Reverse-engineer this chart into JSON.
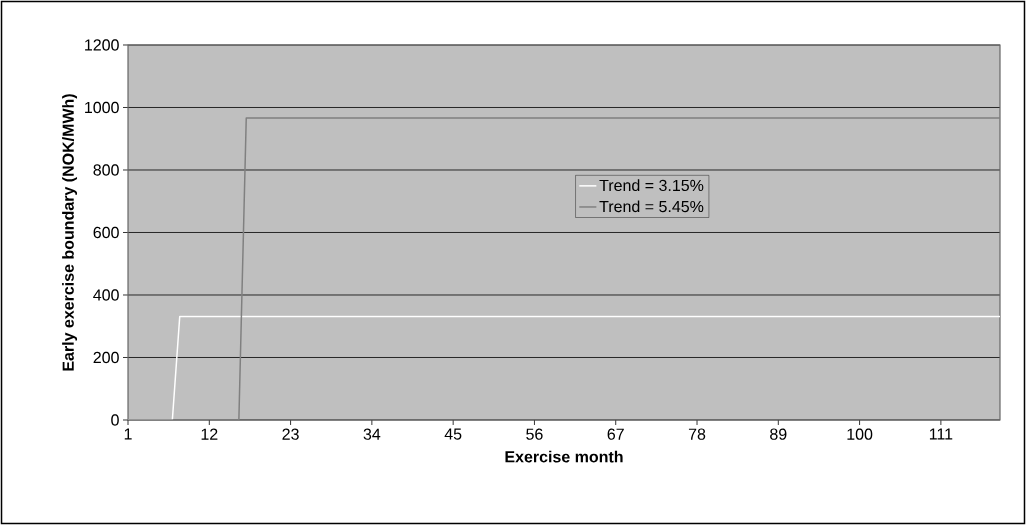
{
  "chart_data": {
    "type": "line",
    "xlabel": "Exercise month",
    "ylabel": "Early exercise boundary (NOK/MWh)",
    "xlim": [
      1,
      119
    ],
    "xticks": [
      1,
      12,
      23,
      34,
      45,
      56,
      67,
      78,
      89,
      100,
      111
    ],
    "ylim": [
      0,
      1200
    ],
    "yticks": [
      0,
      200,
      400,
      600,
      800,
      1000,
      1200
    ],
    "grid": "y",
    "legend": "right",
    "marker": "none",
    "line_style": "solid",
    "series": [
      {
        "name": "Trend = 3.15%",
        "color": "#ffffff",
        "x": [
          1,
          7,
          8,
          119
        ],
        "values": [
          0,
          0,
          331,
          331
        ]
      },
      {
        "name": "Trend = 5.45%",
        "color": "#808080",
        "x": [
          1,
          16,
          17,
          119
        ],
        "values": [
          0,
          0,
          966,
          966
        ]
      }
    ]
  }
}
